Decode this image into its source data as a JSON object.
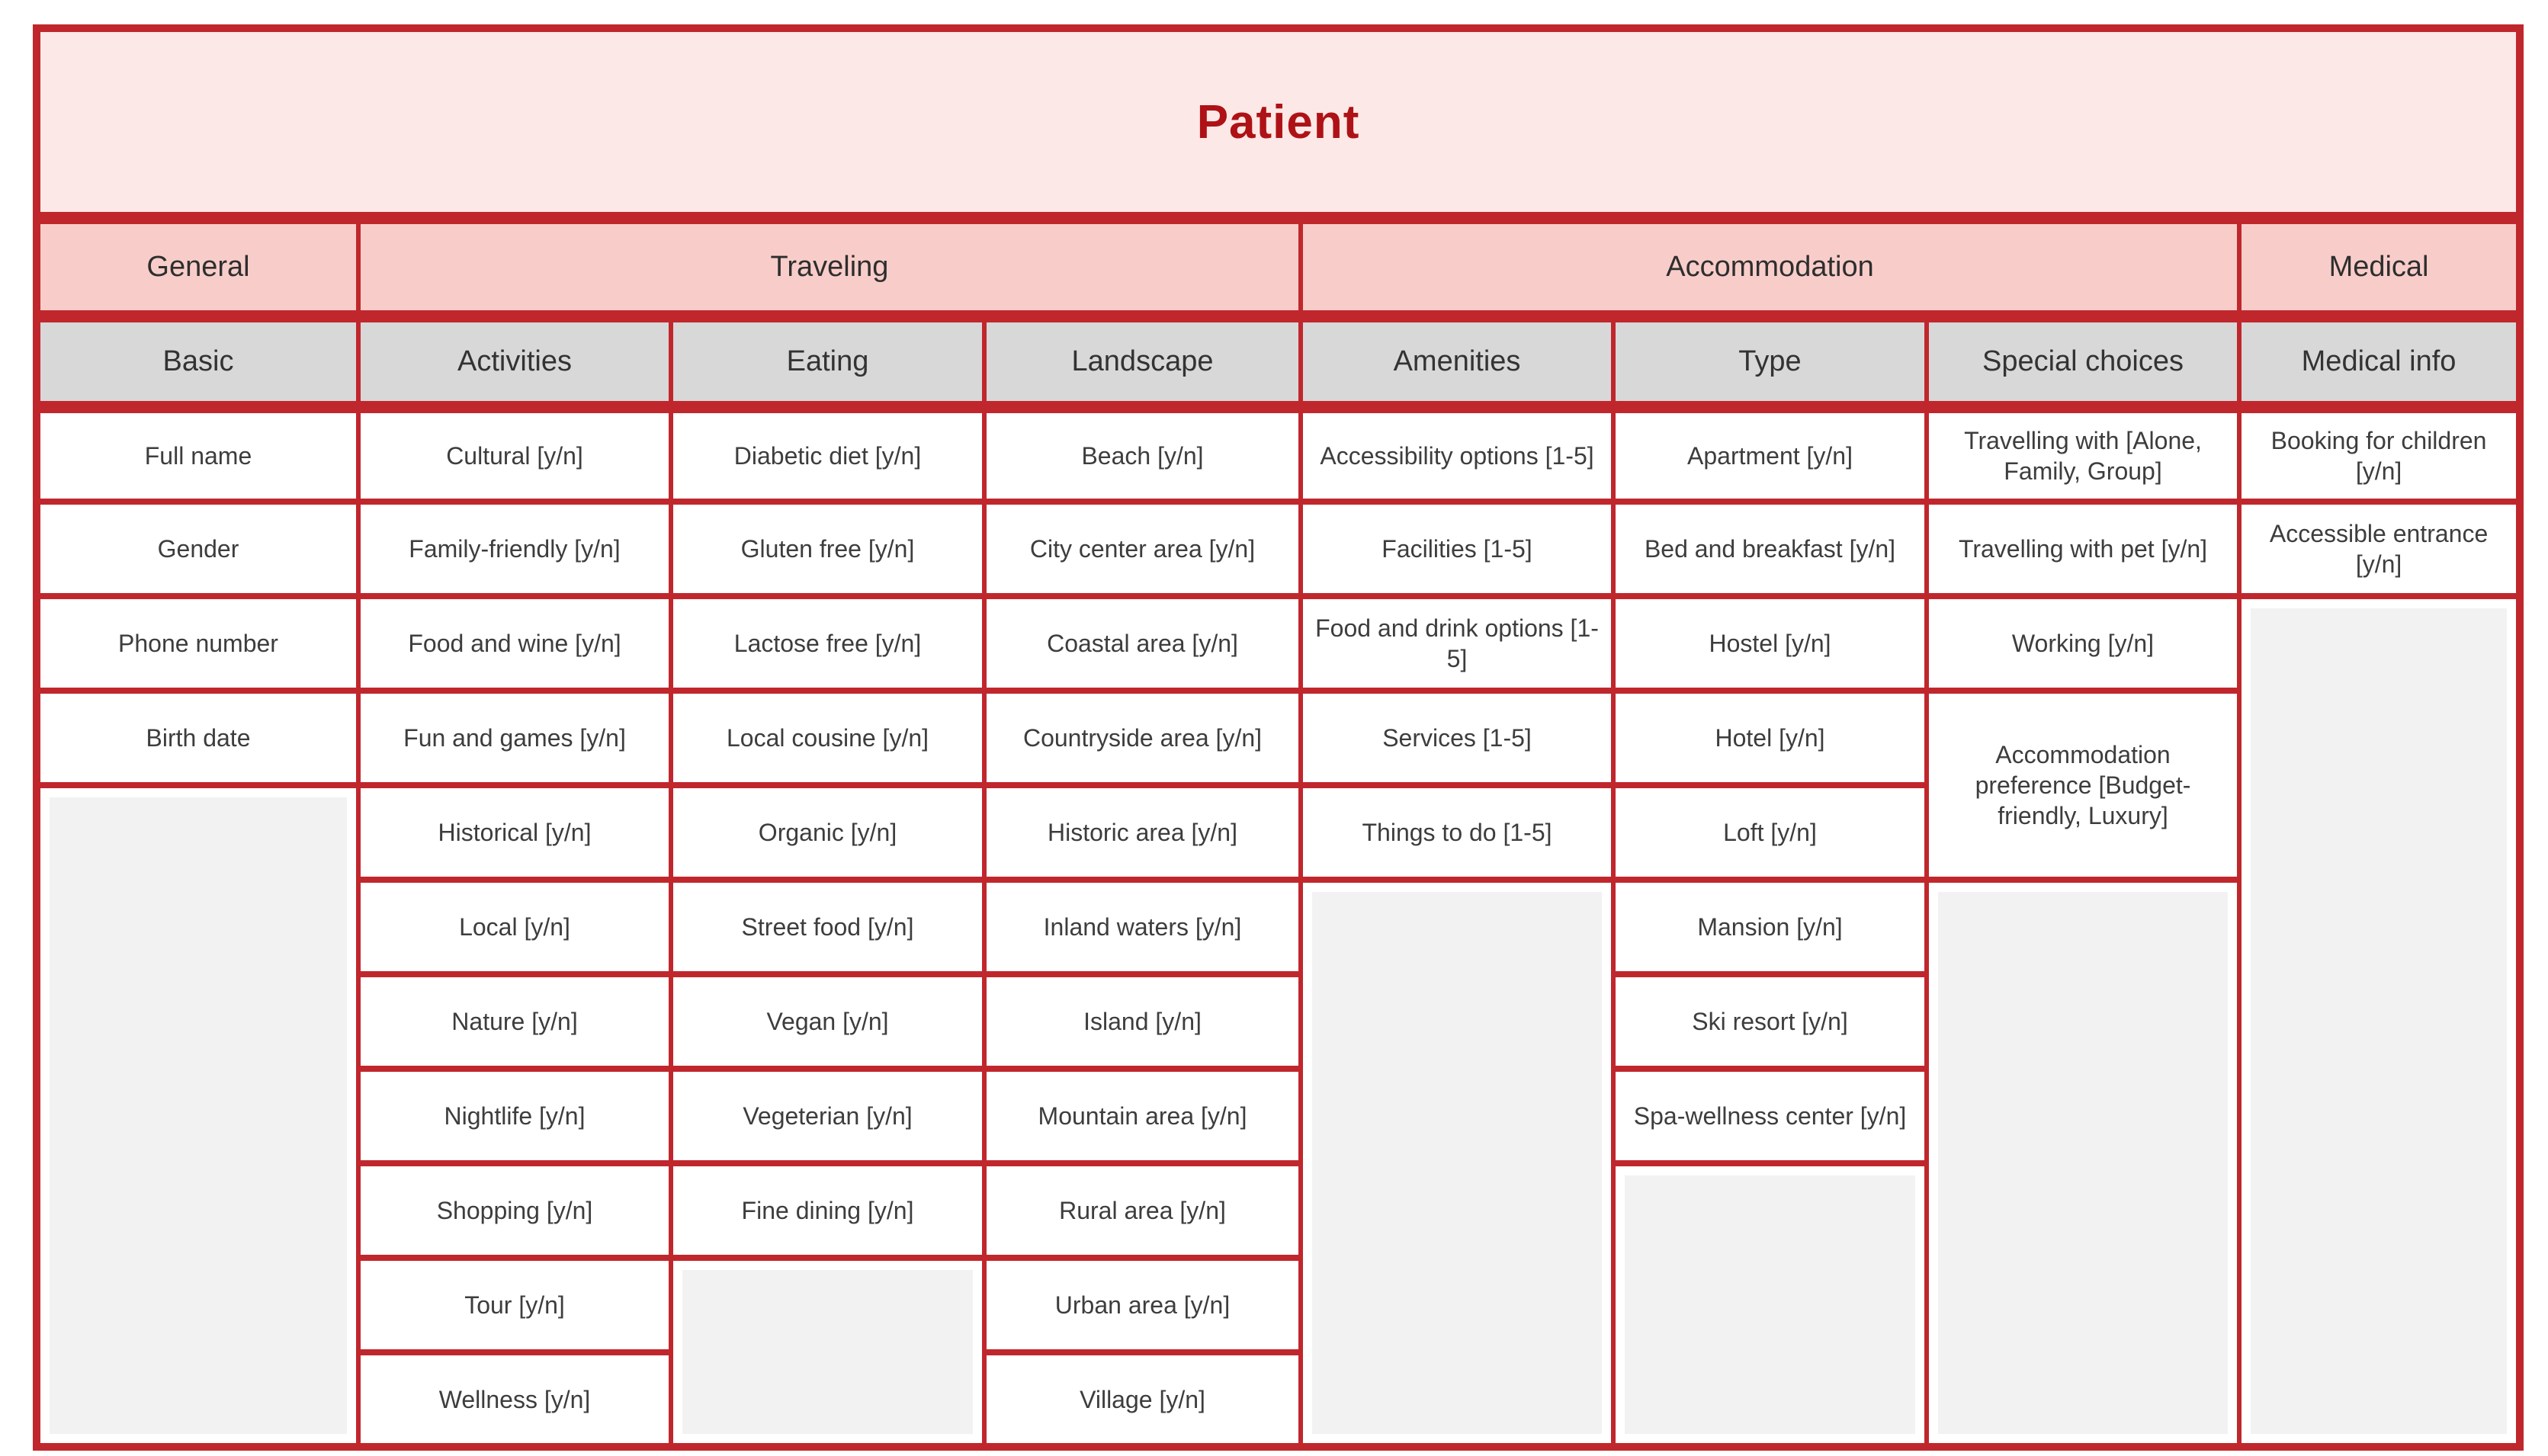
{
  "title": "Patient",
  "colors": {
    "border": "#c0272d",
    "title_fill": "#fce8e6",
    "title_text": "#ae1216",
    "group_fill": "#f8cdc9",
    "subheader_fill": "#d8d8d8",
    "cell_fill": "#ffffff",
    "empty_fill": "#f2f2f2",
    "text": "#3d3d3d"
  },
  "groups": [
    {
      "label": "General",
      "span": 1
    },
    {
      "label": "Traveling",
      "span": 3
    },
    {
      "label": "Accommodation",
      "span": 3
    },
    {
      "label": "Medical",
      "span": 1
    }
  ],
  "columns": [
    {
      "id": "basic",
      "subheader": "Basic",
      "cells": [
        {
          "text": "Full name"
        },
        {
          "text": "Gender"
        },
        {
          "text": "Phone number"
        },
        {
          "text": "Birth date"
        },
        {
          "empty": true,
          "span": 7
        }
      ]
    },
    {
      "id": "activities",
      "subheader": "Activities",
      "cells": [
        {
          "text": "Cultural [y/n]"
        },
        {
          "text": "Family-friendly [y/n]"
        },
        {
          "text": "Food and wine [y/n]"
        },
        {
          "text": "Fun and games [y/n]"
        },
        {
          "text": "Historical [y/n]"
        },
        {
          "text": "Local [y/n]"
        },
        {
          "text": "Nature [y/n]"
        },
        {
          "text": "Nightlife [y/n]"
        },
        {
          "text": "Shopping [y/n]"
        },
        {
          "text": "Tour [y/n]"
        },
        {
          "text": "Wellness [y/n]"
        }
      ]
    },
    {
      "id": "eating",
      "subheader": "Eating",
      "cells": [
        {
          "text": "Diabetic diet [y/n]"
        },
        {
          "text": "Gluten free [y/n]"
        },
        {
          "text": "Lactose free [y/n]"
        },
        {
          "text": "Local cousine [y/n]"
        },
        {
          "text": "Organic [y/n]"
        },
        {
          "text": "Street food [y/n]"
        },
        {
          "text": "Vegan [y/n]"
        },
        {
          "text": "Vegeterian [y/n]"
        },
        {
          "text": "Fine dining [y/n]"
        },
        {
          "empty": true,
          "span": 2
        }
      ]
    },
    {
      "id": "landscape",
      "subheader": "Landscape",
      "cells": [
        {
          "text": "Beach [y/n]"
        },
        {
          "text": "City center area [y/n]"
        },
        {
          "text": "Coastal area [y/n]"
        },
        {
          "text": "Countryside area [y/n]"
        },
        {
          "text": "Historic area [y/n]"
        },
        {
          "text": "Inland waters [y/n]"
        },
        {
          "text": "Island [y/n]"
        },
        {
          "text": "Mountain area [y/n]"
        },
        {
          "text": "Rural area [y/n]"
        },
        {
          "text": "Urban area [y/n]"
        },
        {
          "text": "Village [y/n]"
        }
      ]
    },
    {
      "id": "amenities",
      "subheader": "Amenities",
      "cells": [
        {
          "text": "Accessibility options [1-5]"
        },
        {
          "text": "Facilities [1-5]"
        },
        {
          "text": "Food and drink options [1-5]"
        },
        {
          "text": "Services [1-5]"
        },
        {
          "text": "Things to do [1-5]"
        },
        {
          "empty": true,
          "span": 6
        }
      ]
    },
    {
      "id": "type",
      "subheader": "Type",
      "cells": [
        {
          "text": "Apartment [y/n]"
        },
        {
          "text": "Bed and breakfast [y/n]"
        },
        {
          "text": "Hostel [y/n]"
        },
        {
          "text": "Hotel [y/n]"
        },
        {
          "text": "Loft [y/n]"
        },
        {
          "text": "Mansion [y/n]"
        },
        {
          "text": "Ski resort [y/n]"
        },
        {
          "text": "Spa-wellness center [y/n]"
        },
        {
          "empty": true,
          "span": 3
        }
      ]
    },
    {
      "id": "special-choices",
      "subheader": "Special choices",
      "cells": [
        {
          "text": "Travelling with [Alone, Family, Group]"
        },
        {
          "text": "Travelling with pet [y/n]"
        },
        {
          "text": "Working [y/n]"
        },
        {
          "text": "Accommodation preference [Budget-friendly, Luxury]",
          "span": 2
        },
        {
          "empty": true,
          "span": 6
        }
      ]
    },
    {
      "id": "medical-info",
      "subheader": "Medical info",
      "cells": [
        {
          "text": "Booking for children [y/n]"
        },
        {
          "text": "Accessible entrance [y/n]"
        },
        {
          "empty": true,
          "span": 9
        }
      ]
    }
  ],
  "layout_info": {
    "data_row_count": 11,
    "column_count": 8
  }
}
